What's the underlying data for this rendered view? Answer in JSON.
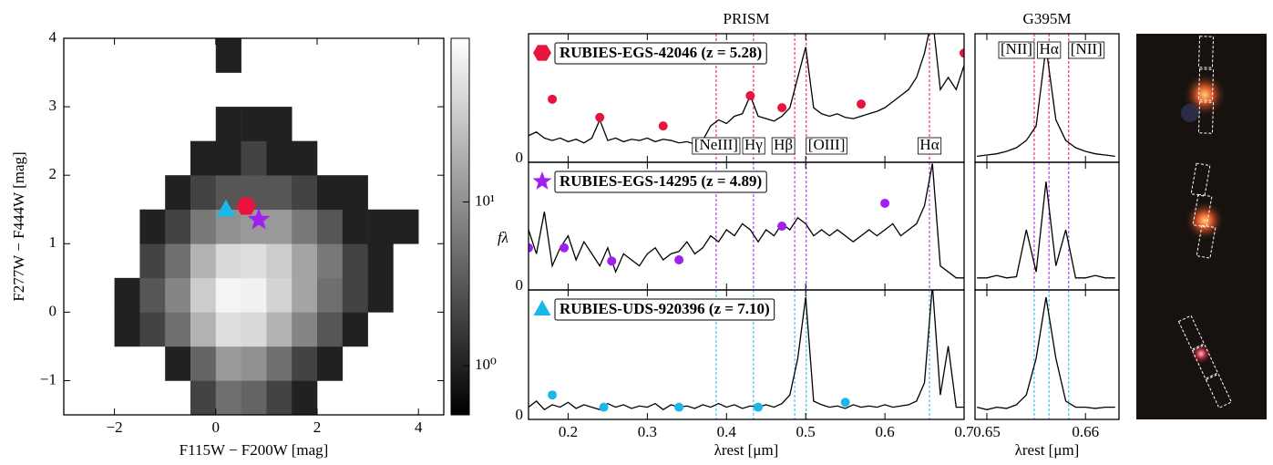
{
  "chart_data": [
    {
      "type": "hist2d",
      "xlabel": "F115W − F200W [mag]",
      "ylabel": "F277W − F444W [mag]",
      "xlim": [
        -3,
        4.5
      ],
      "ylim": [
        -1.5,
        4
      ],
      "xticks": [
        {
          "value": -2,
          "label": "−2"
        },
        0,
        2,
        4
      ],
      "yticks": [
        {
          "value": -1,
          "label": "−1"
        },
        0,
        1,
        2,
        3,
        4
      ],
      "xbins": [
        -2.5,
        -2,
        -1.5,
        -1,
        -0.5,
        0,
        0.5,
        1,
        1.5,
        2,
        2.5,
        3,
        3.5,
        4,
        4.5
      ],
      "ybins": [
        -1.5,
        -1,
        -0.5,
        0,
        0.5,
        1,
        1.5,
        2,
        2.5,
        3,
        3.5,
        4
      ],
      "counts": [
        [
          0,
          0,
          0,
          0,
          2,
          5,
          4,
          2,
          1,
          0,
          0,
          0,
          0,
          0
        ],
        [
          0,
          0,
          0,
          1,
          4,
          12,
          10,
          5,
          2,
          1,
          0,
          0,
          0,
          0
        ],
        [
          0,
          1,
          2,
          5,
          20,
          50,
          45,
          20,
          8,
          3,
          1,
          0,
          0,
          0
        ],
        [
          0,
          1,
          3,
          8,
          35,
          80,
          75,
          40,
          15,
          5,
          2,
          1,
          0,
          0
        ],
        [
          0,
          0,
          2,
          5,
          20,
          45,
          50,
          35,
          15,
          6,
          2,
          1,
          0,
          0
        ],
        [
          0,
          0,
          1,
          2,
          6,
          10,
          12,
          12,
          6,
          3,
          1,
          1,
          1,
          0
        ],
        [
          0,
          0,
          0,
          1,
          2,
          3,
          3,
          3,
          2,
          1,
          1,
          0,
          0,
          0
        ],
        [
          0,
          0,
          0,
          0,
          1,
          1,
          2,
          1,
          1,
          0,
          0,
          0,
          0,
          0
        ],
        [
          0,
          0,
          0,
          0,
          0,
          1,
          1,
          1,
          0,
          0,
          0,
          0,
          0,
          0
        ],
        [
          0,
          0,
          0,
          0,
          0,
          0,
          0,
          0,
          0,
          0,
          0,
          0,
          0,
          0
        ],
        [
          0,
          0,
          0,
          0,
          0,
          1,
          0,
          0,
          0,
          0,
          0,
          0,
          0,
          0
        ]
      ],
      "colorbar": {
        "log": true,
        "clim": [
          0.5,
          100
        ],
        "ticks": [
          {
            "value": 1,
            "label": "10⁰"
          },
          {
            "value": 10,
            "label": "10¹"
          }
        ]
      },
      "markers": [
        {
          "x": 0.6,
          "y": 1.55,
          "color": "#e8143c",
          "shape": "hexagon"
        },
        {
          "x": 0.85,
          "y": 1.35,
          "color": "#a020f0",
          "shape": "star"
        },
        {
          "x": 0.2,
          "y": 1.5,
          "color": "#1ab8e8",
          "shape": "triangle"
        }
      ]
    },
    {
      "type": "spectrum",
      "title": "PRISM",
      "xlabel": "λrest [μm]",
      "ylabel": "fλ",
      "xlim": [
        0.15,
        0.7
      ],
      "xticks": [
        0.2,
        0.3,
        0.4,
        0.5,
        0.6,
        0.7
      ],
      "x": [
        0.15,
        0.16,
        0.17,
        0.18,
        0.19,
        0.2,
        0.21,
        0.22,
        0.23,
        0.24,
        0.25,
        0.26,
        0.27,
        0.28,
        0.29,
        0.3,
        0.31,
        0.32,
        0.33,
        0.34,
        0.35,
        0.36,
        0.37,
        0.38,
        0.39,
        0.4,
        0.41,
        0.42,
        0.43,
        0.44,
        0.45,
        0.46,
        0.47,
        0.48,
        0.49,
        0.5,
        0.51,
        0.52,
        0.53,
        0.54,
        0.55,
        0.56,
        0.57,
        0.58,
        0.59,
        0.6,
        0.61,
        0.62,
        0.63,
        0.64,
        0.65,
        0.66,
        0.67,
        0.68,
        0.69,
        0.7
      ],
      "lines": [
        {
          "value": 0.3869,
          "label": "[NeIII]"
        },
        {
          "value": 0.4341,
          "label": "Hγ"
        },
        {
          "value": 0.4861,
          "label": "Hβ"
        },
        {
          "value": 0.5007,
          "label": "[OIII]"
        },
        {
          "value": 0.6563,
          "label": "Hα"
        }
      ],
      "panels": [
        {
          "label": "RUBIES-EGS-42046 (z = 5.28)",
          "color": "#e8143c",
          "shape": "hexagon",
          "ylim": [
            0,
            1
          ],
          "yticks": [
            0
          ],
          "values": [
            0.22,
            0.25,
            0.2,
            0.18,
            0.2,
            0.17,
            0.19,
            0.16,
            0.2,
            0.35,
            0.18,
            0.2,
            0.17,
            0.19,
            0.18,
            0.2,
            0.17,
            0.19,
            0.18,
            0.16,
            0.17,
            0.15,
            0.18,
            0.3,
            0.35,
            0.32,
            0.38,
            0.4,
            0.55,
            0.38,
            0.36,
            0.34,
            0.38,
            0.45,
            0.7,
            0.95,
            0.45,
            0.4,
            0.38,
            0.4,
            0.37,
            0.36,
            0.38,
            0.4,
            0.42,
            0.45,
            0.5,
            0.55,
            0.6,
            0.7,
            0.9,
            1.2,
            0.6,
            0.7,
            0.6,
            0.8
          ],
          "phot": {
            "x": [
              0.18,
              0.24,
              0.32,
              0.43,
              0.47,
              0.57,
              0.7
            ],
            "y": [
              0.52,
              0.37,
              0.3,
              0.55,
              0.45,
              0.48,
              0.9
            ]
          }
        },
        {
          "label": "RUBIES-EGS-14295 (z = 4.89)",
          "color": "#a020f0",
          "shape": "star",
          "ylim": [
            0,
            1
          ],
          "yticks": [
            0
          ],
          "values": [
            0.5,
            0.3,
            0.65,
            0.2,
            0.35,
            0.45,
            0.25,
            0.4,
            0.3,
            0.2,
            0.35,
            0.15,
            0.3,
            0.25,
            0.2,
            0.3,
            0.35,
            0.25,
            0.3,
            0.32,
            0.4,
            0.3,
            0.35,
            0.45,
            0.4,
            0.5,
            0.45,
            0.55,
            0.5,
            0.4,
            0.5,
            0.45,
            0.55,
            0.5,
            0.6,
            0.55,
            0.45,
            0.5,
            0.45,
            0.5,
            0.45,
            0.4,
            0.45,
            0.5,
            0.45,
            0.5,
            0.55,
            0.45,
            0.5,
            0.55,
            0.7,
            1.05,
            0.2,
            0.15,
            0.1,
            0.1
          ],
          "phot": {
            "x": [
              0.15,
              0.195,
              0.255,
              0.34,
              0.47,
              0.6
            ],
            "y": [
              0.35,
              0.35,
              0.24,
              0.25,
              0.53,
              0.72
            ]
          }
        },
        {
          "label": "RUBIES-UDS-920396 (z = 7.10)",
          "color": "#1ab8e8",
          "shape": "triangle",
          "ylim": [
            0,
            1
          ],
          "yticks": [
            0
          ],
          "values": [
            0.1,
            0.15,
            0.08,
            0.12,
            0.1,
            0.14,
            0.09,
            0.12,
            0.1,
            0.08,
            0.13,
            0.1,
            0.12,
            0.09,
            0.11,
            0.1,
            0.13,
            0.08,
            0.12,
            0.1,
            0.11,
            0.09,
            0.12,
            0.1,
            0.13,
            0.1,
            0.12,
            0.09,
            0.11,
            0.1,
            0.12,
            0.1,
            0.13,
            0.2,
            0.5,
            1.0,
            0.15,
            0.12,
            0.1,
            0.11,
            0.09,
            0.12,
            0.1,
            0.11,
            0.1,
            0.12,
            0.1,
            0.11,
            0.12,
            0.15,
            0.3,
            1.1,
            0.2,
            0.6,
            0.1,
            0.1
          ],
          "phot": {
            "x": [
              0.18,
              0.245,
              0.34,
              0.44,
              0.55
            ],
            "y": [
              0.2,
              0.1,
              0.1,
              0.1,
              0.14
            ]
          }
        }
      ]
    },
    {
      "type": "spectrum",
      "title": "G395M",
      "xlabel": "λrest [μm]",
      "xlim": [
        0.6488,
        0.6634
      ],
      "xticks": [
        0.65,
        0.66
      ],
      "x": [
        0.649,
        0.65,
        0.651,
        0.652,
        0.653,
        0.654,
        0.655,
        0.656,
        0.657,
        0.658,
        0.659,
        0.66,
        0.661,
        0.662,
        0.663
      ],
      "lines": [
        {
          "value": 0.6548,
          "label": "[NII]"
        },
        {
          "value": 0.6563,
          "label": "Hα"
        },
        {
          "value": 0.6583,
          "label": "[NII]"
        }
      ],
      "panels": [
        {
          "color": "#e8143c",
          "ylim": [
            0,
            1
          ],
          "values": [
            0.05,
            0.06,
            0.07,
            0.09,
            0.12,
            0.18,
            0.3,
            0.95,
            0.35,
            0.18,
            0.12,
            0.09,
            0.07,
            0.06,
            0.05
          ]
        },
        {
          "color": "#a020f0",
          "ylim": [
            0,
            1
          ],
          "values": [
            0.1,
            0.1,
            0.12,
            0.1,
            0.11,
            0.5,
            0.15,
            0.9,
            0.2,
            0.5,
            0.1,
            0.1,
            0.12,
            0.1,
            0.1
          ]
        },
        {
          "color": "#1ab8e8",
          "ylim": [
            0,
            1
          ],
          "values": [
            0.1,
            0.08,
            0.1,
            0.09,
            0.12,
            0.2,
            0.5,
            1.0,
            0.5,
            0.15,
            0.1,
            0.1,
            0.09,
            0.1,
            0.1
          ]
        }
      ]
    }
  ]
}
